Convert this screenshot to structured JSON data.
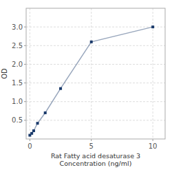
{
  "chart_data": {
    "type": "line",
    "x": [
      0,
      0.156,
      0.313,
      0.625,
      1.25,
      2.5,
      5,
      10
    ],
    "values": [
      0.1,
      0.15,
      0.22,
      0.42,
      0.7,
      1.35,
      2.6,
      3.0
    ],
    "xlabel": "Rat Fatty acid desaturase 3\nConcentration (ng/ml)",
    "ylabel": "OD",
    "xlim": [
      -0.3,
      11
    ],
    "ylim": [
      0,
      3.5
    ],
    "xticks": [
      0,
      5,
      10
    ],
    "yticks": [
      0.5,
      {
        "value": 1.0,
        "label": "1.0"
      },
      1.5,
      {
        "value": 2.0,
        "label": "2.0"
      },
      2.5,
      {
        "value": 3.0,
        "label": "3.0"
      }
    ],
    "color": "#1a3a6b",
    "marker": "square",
    "grid": true
  }
}
